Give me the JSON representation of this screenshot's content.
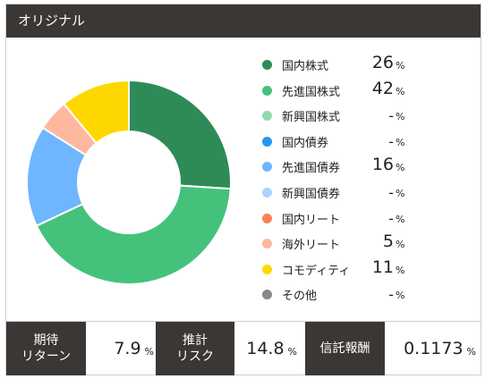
{
  "header": {
    "title": "オリジナル"
  },
  "chart_data": {
    "type": "pie",
    "style": "donut",
    "categories": [
      "国内株式",
      "先進国株式",
      "新興国株式",
      "国内債券",
      "先進国債券",
      "新興国債券",
      "国内リート",
      "海外リート",
      "コモディティ",
      "その他"
    ],
    "values": [
      26,
      42,
      null,
      null,
      16,
      null,
      null,
      5,
      11,
      null
    ],
    "display_values": [
      "26",
      "42",
      "-",
      "-",
      "16",
      "-",
      "-",
      "5",
      "11",
      "-"
    ],
    "unit": "%",
    "colors": [
      "#2e8b57",
      "#44c27c",
      "#8fd9ae",
      "#2196f3",
      "#6eb6ff",
      "#a8d4ff",
      "#ff7f5a",
      "#ffb8a0",
      "#ffd700",
      "#888888"
    ],
    "legend_position": "right"
  },
  "stats": [
    {
      "label_line1": "期待",
      "label_line2": "リターン",
      "value": "7.9",
      "unit": "%"
    },
    {
      "label_line1": "推計",
      "label_line2": "リスク",
      "value": "14.8",
      "unit": "%"
    },
    {
      "label_line1": "信託報酬",
      "label_line2": "",
      "value": "0.1173",
      "unit": "%"
    }
  ]
}
